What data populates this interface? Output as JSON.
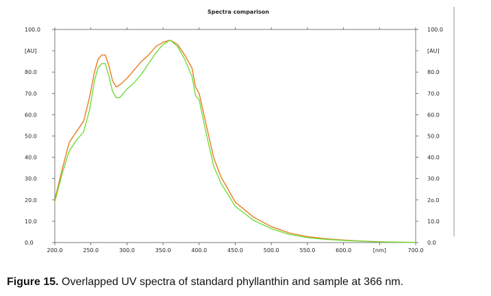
{
  "chart_data": {
    "type": "line",
    "title": "Spectra comparison",
    "xlabel": "[nm]",
    "ylabel": "[AU]",
    "xlim": [
      200,
      700
    ],
    "ylim": [
      0,
      100
    ],
    "x_ticks": [
      "200.0",
      "250.0",
      "300.0",
      "350.0",
      "400.0",
      "450.0",
      "500.0",
      "550.0",
      "600.0",
      "[nm]",
      "700.0"
    ],
    "y_ticks_left": [
      "0.0",
      "10.0",
      "20.0",
      "30.0",
      "40.0",
      "50.0",
      "60.0",
      "70.0",
      "80.0",
      "[AU]",
      "100.0"
    ],
    "y_ticks_right": [
      "0.0",
      "10.0",
      "2o.0",
      "30.0",
      "40.0",
      "50.0",
      "60.0",
      "70.0",
      "80.0",
      "[AU]",
      "100.0"
    ],
    "y_tick_values": [
      0,
      10,
      20,
      30,
      40,
      50,
      60,
      70,
      80,
      90,
      100
    ],
    "x_tick_values": [
      200,
      250,
      300,
      350,
      400,
      450,
      500,
      550,
      600,
      650,
      700
    ],
    "series": [
      {
        "name": "standard phyllanthin",
        "color": "#e87a1e",
        "x": [
          200,
          210,
          220,
          230,
          240,
          248,
          255,
          260,
          265,
          270,
          275,
          280,
          285,
          290,
          300,
          310,
          320,
          330,
          340,
          350,
          360,
          370,
          380,
          390,
          395,
          400,
          410,
          420,
          430,
          450,
          475,
          500,
          525,
          550,
          575,
          600,
          625,
          650,
          675,
          700
        ],
        "values": [
          20,
          34,
          47,
          52,
          57,
          68,
          80,
          86,
          88,
          88,
          83,
          76,
          73,
          74,
          77,
          81,
          85,
          88,
          92,
          94,
          95,
          93,
          88,
          82,
          73,
          70,
          55,
          40,
          31,
          19,
          12,
          7.5,
          4.5,
          2.8,
          1.8,
          1.2,
          0.7,
          0.4,
          0.2,
          0.1
        ]
      },
      {
        "name": "sample",
        "color": "#6fdc3c",
        "x": [
          200,
          210,
          220,
          230,
          240,
          248,
          255,
          260,
          265,
          270,
          275,
          280,
          285,
          290,
          300,
          310,
          320,
          330,
          340,
          350,
          360,
          370,
          380,
          390,
          395,
          400,
          410,
          420,
          430,
          450,
          475,
          500,
          525,
          550,
          575,
          600,
          625,
          650,
          675,
          700
        ],
        "values": [
          19,
          32,
          43,
          48,
          52,
          62,
          76,
          82,
          84,
          84,
          78,
          71,
          68,
          68,
          72,
          75,
          79,
          84,
          89,
          93,
          95,
          92,
          86,
          78,
          69,
          67,
          51,
          36,
          28,
          17,
          10.5,
          6.5,
          3.8,
          2.3,
          1.5,
          1,
          0.6,
          0.3,
          0.2,
          0.1
        ]
      }
    ]
  },
  "caption": {
    "label": "Figure 15.",
    "text": " Overlapped UV spectra of standard phyllanthin and sample at 366 nm."
  }
}
